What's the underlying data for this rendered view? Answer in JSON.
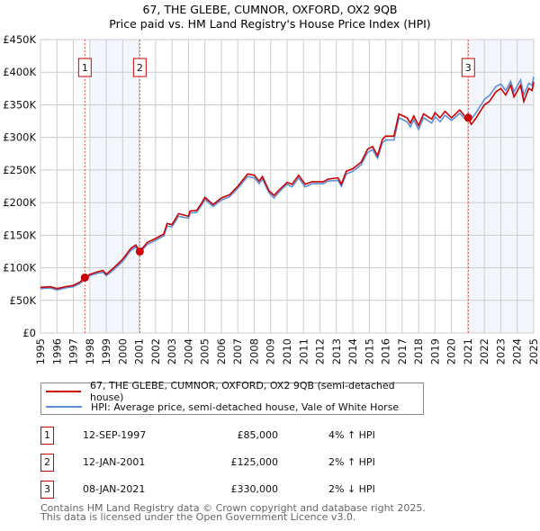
{
  "chart_data": {
    "type": "line",
    "title": "67, THE GLEBE, CUMNOR, OXFORD, OX2 9QB",
    "subtitle": "Price paid vs. HM Land Registry's House Price Index (HPI)",
    "xlim": [
      1995,
      2025
    ],
    "ylim": [
      0,
      450000
    ],
    "grid": true,
    "yticks": [
      {
        "v": 0,
        "label": "£0"
      },
      {
        "v": 50000,
        "label": "£50K"
      },
      {
        "v": 100000,
        "label": "£100K"
      },
      {
        "v": 150000,
        "label": "£150K"
      },
      {
        "v": 200000,
        "label": "£200K"
      },
      {
        "v": 250000,
        "label": "£250K"
      },
      {
        "v": 300000,
        "label": "£300K"
      },
      {
        "v": 350000,
        "label": "£350K"
      },
      {
        "v": 400000,
        "label": "£400K"
      },
      {
        "v": 450000,
        "label": "£450K"
      }
    ],
    "xticks": [
      "1995",
      "1996",
      "1997",
      "1998",
      "1999",
      "2000",
      "2001",
      "2002",
      "2003",
      "2004",
      "2005",
      "2006",
      "2007",
      "2008",
      "2009",
      "2010",
      "2011",
      "2012",
      "2013",
      "2014",
      "2015",
      "2016",
      "2017",
      "2018",
      "2019",
      "2020",
      "2021",
      "2022",
      "2023",
      "2024",
      "2025"
    ],
    "shaded_ranges": [
      [
        1998.0,
        2001.04
      ],
      [
        2021.02,
        2025
      ]
    ],
    "series": [
      {
        "name": "67, THE GLEBE, CUMNOR, OXFORD, OX2 9QB (semi-detached house)",
        "color": "#cc0000",
        "x": [
          1995,
          1995.6,
          1996,
          1996.5,
          1997,
          1997.4,
          1997.7,
          1998,
          1998.5,
          1998.8,
          1999,
          1999.5,
          2000,
          2000.5,
          2000.8,
          2001.04,
          2001.5,
          2002,
          2002.5,
          2002.7,
          2003,
          2003.4,
          2004,
          2004.1,
          2004.5,
          2004.8,
          2005,
          2005.5,
          2006,
          2006.5,
          2007,
          2007.6,
          2008,
          2008.3,
          2008.5,
          2008.9,
          2009.2,
          2009.5,
          2010,
          2010.3,
          2010.7,
          2011.1,
          2011.5,
          2012.2,
          2012.5,
          2013.1,
          2013.3,
          2013.6,
          2014,
          2014.5,
          2014.9,
          2015.2,
          2015.5,
          2015.8,
          2016,
          2016.5,
          2016.8,
          2017.3,
          2017.5,
          2017.7,
          2018,
          2018.3,
          2018.8,
          2019,
          2019.3,
          2019.6,
          2020,
          2020.5,
          2020.8,
          2021.02,
          2021.2,
          2021.5,
          2022,
          2022.3,
          2022.7,
          2023,
          2023.3,
          2023.6,
          2023.8,
          2024.2,
          2024.4,
          2024.7,
          2024.9,
          2025
        ],
        "values": [
          70000,
          71000,
          68000,
          71000,
          73000,
          78000,
          85000,
          90000,
          94000,
          96000,
          90000,
          101000,
          113000,
          130000,
          135000,
          125000,
          139000,
          145000,
          152000,
          168000,
          166000,
          183000,
          179000,
          187000,
          188000,
          199000,
          208000,
          197000,
          207000,
          212000,
          225000,
          244000,
          242000,
          233000,
          240000,
          218000,
          211000,
          219000,
          231000,
          228000,
          242000,
          228000,
          232000,
          232000,
          236000,
          238000,
          228000,
          248000,
          252000,
          262000,
          282000,
          286000,
          272000,
          297000,
          302000,
          302000,
          336000,
          330000,
          322000,
          333000,
          318000,
          336000,
          328000,
          338000,
          330000,
          340000,
          330000,
          342000,
          333000,
          330000,
          320000,
          330000,
          350000,
          355000,
          370000,
          375000,
          365000,
          380000,
          362000,
          380000,
          355000,
          375000,
          372000,
          385000
        ]
      },
      {
        "name": "HPI: Average price, semi-detached house, Vale of White Horse",
        "color": "#5b8fd6",
        "x": [
          1995,
          1995.6,
          1996,
          1996.5,
          1997,
          1997.4,
          1997.7,
          1998,
          1998.5,
          1998.8,
          1999,
          1999.5,
          2000,
          2000.5,
          2000.8,
          2001.04,
          2001.5,
          2002,
          2002.5,
          2002.7,
          2003,
          2003.4,
          2004,
          2004.1,
          2004.5,
          2004.8,
          2005,
          2005.5,
          2006,
          2006.5,
          2007,
          2007.6,
          2008,
          2008.3,
          2008.5,
          2008.9,
          2009.2,
          2009.5,
          2010,
          2010.3,
          2010.7,
          2011.1,
          2011.5,
          2012.2,
          2012.5,
          2013.1,
          2013.3,
          2013.6,
          2014,
          2014.5,
          2014.9,
          2015.2,
          2015.5,
          2015.8,
          2016,
          2016.5,
          2016.8,
          2017.3,
          2017.5,
          2017.7,
          2018,
          2018.3,
          2018.8,
          2019,
          2019.3,
          2019.6,
          2020,
          2020.5,
          2020.8,
          2021.02,
          2021.2,
          2021.5,
          2022,
          2022.3,
          2022.7,
          2023,
          2023.3,
          2023.6,
          2023.8,
          2024.2,
          2024.4,
          2024.7,
          2024.9,
          2025
        ],
        "values": [
          68000,
          69000,
          66000,
          69000,
          71000,
          76000,
          82000,
          88000,
          92000,
          93000,
          88000,
          98000,
          110000,
          127000,
          132000,
          123000,
          136000,
          142000,
          149000,
          164000,
          163000,
          179000,
          176000,
          184000,
          185000,
          196000,
          205000,
          194000,
          204000,
          209000,
          222000,
          240000,
          238000,
          229000,
          236000,
          215000,
          207000,
          216000,
          228000,
          224000,
          238000,
          224000,
          229000,
          229000,
          233000,
          234000,
          225000,
          244000,
          248000,
          258000,
          277000,
          281000,
          268000,
          292000,
          296000,
          296000,
          330000,
          324000,
          316000,
          327000,
          312000,
          330000,
          322000,
          332000,
          324000,
          334000,
          326000,
          337000,
          329000,
          337000,
          328000,
          338000,
          358000,
          364000,
          378000,
          382000,
          372000,
          386000,
          370000,
          388000,
          365000,
          383000,
          380000,
          393000
        ]
      }
    ],
    "sales": [
      {
        "id": "1",
        "x": 1997.7,
        "value": 85000
      },
      {
        "id": "2",
        "x": 2001.04,
        "value": 125000
      },
      {
        "id": "3",
        "x": 2021.02,
        "value": 330000
      }
    ]
  },
  "legend": {
    "items": [
      "67, THE GLEBE, CUMNOR, OXFORD, OX2 9QB (semi-detached house)",
      "HPI: Average price, semi-detached house, Vale of White Horse"
    ]
  },
  "transactions": [
    {
      "id": "1",
      "date": "12-SEP-1997",
      "price": "£85,000",
      "hpi": "4% ↑ HPI"
    },
    {
      "id": "2",
      "date": "12-JAN-2001",
      "price": "£125,000",
      "hpi": "2% ↑ HPI"
    },
    {
      "id": "3",
      "date": "08-JAN-2021",
      "price": "£330,000",
      "hpi": "2% ↓ HPI"
    }
  ],
  "footer": {
    "line1": "Contains HM Land Registry data © Crown copyright and database right 2025.",
    "line2": "This data is licensed under the Open Government Licence v3.0."
  }
}
